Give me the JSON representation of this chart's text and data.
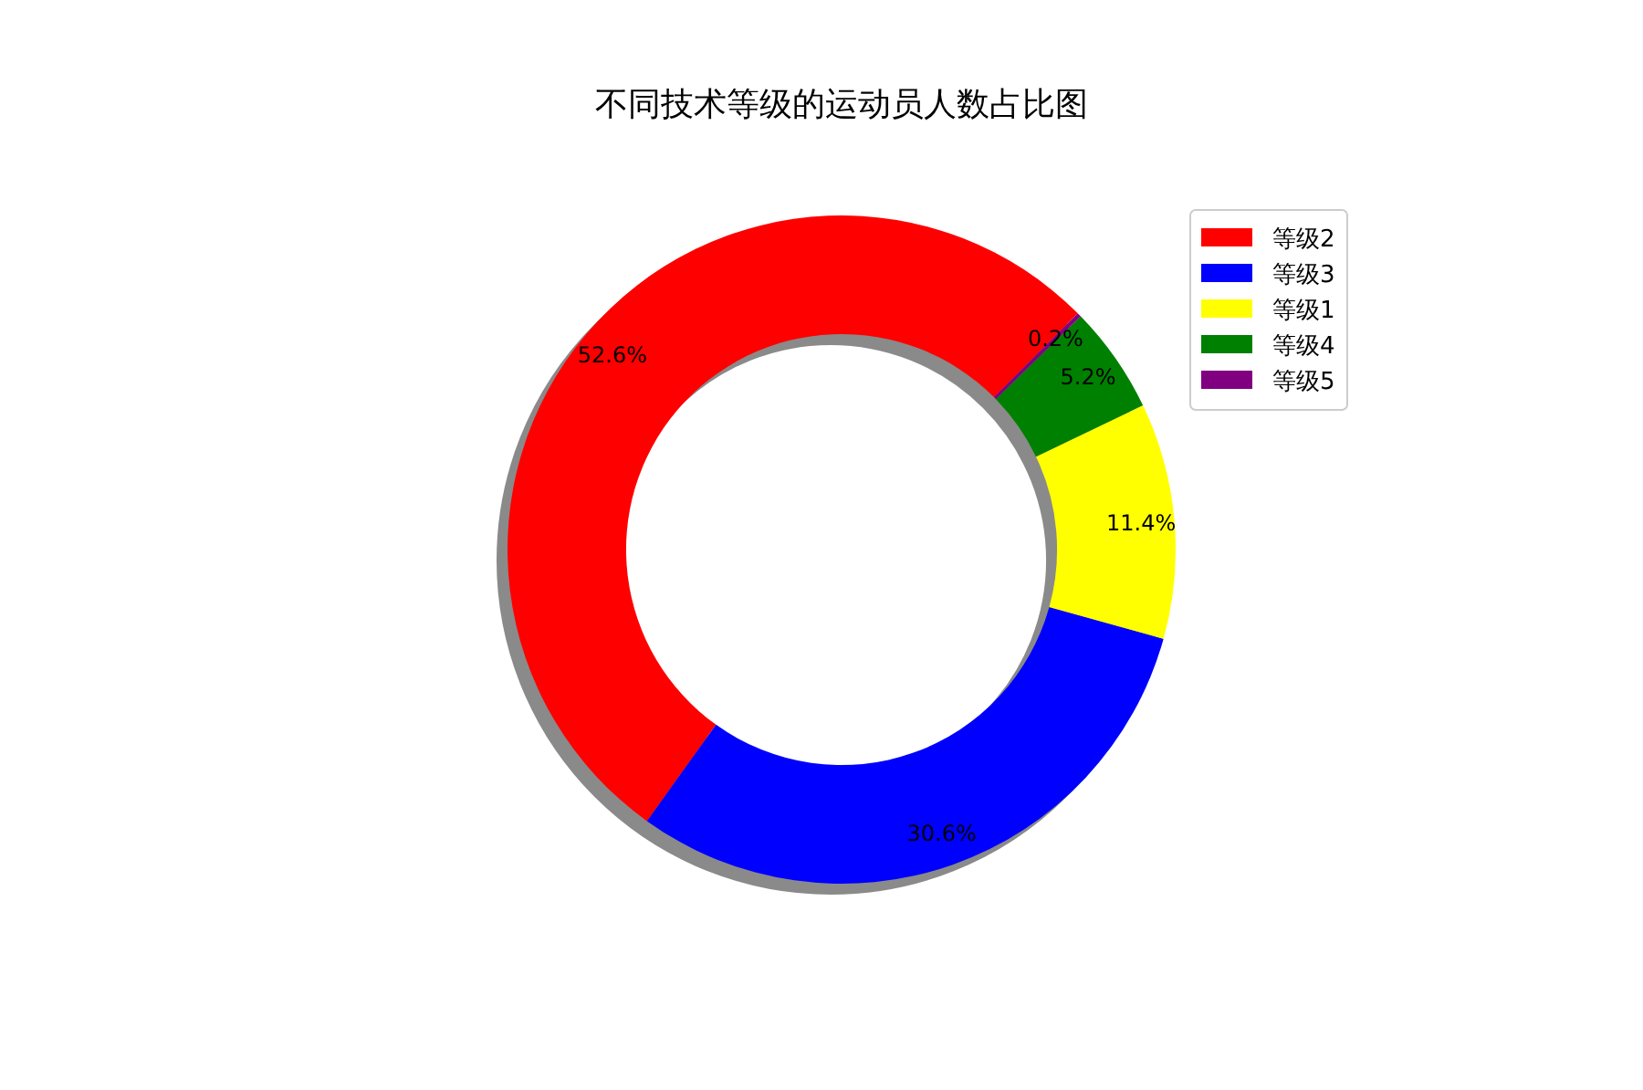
{
  "chart_data": {
    "type": "donut",
    "title": "不同技术等级的运动员人数占比图",
    "categories": [
      "等级2",
      "等级3",
      "等级1",
      "等级4",
      "等级5"
    ],
    "values": [
      52.6,
      30.6,
      11.4,
      5.2,
      0.2
    ],
    "colors": [
      "#ff0000",
      "#0000ff",
      "#ffff00",
      "#008000",
      "#800080"
    ],
    "value_labels": [
      "52.6%",
      "30.6%",
      "11.4%",
      "5.2%",
      "0.2%"
    ],
    "legend": "top right"
  }
}
